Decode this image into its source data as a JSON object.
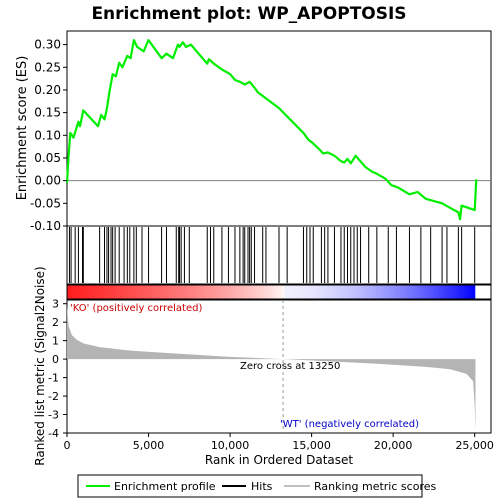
{
  "chart_data": {
    "type": "line",
    "title": "Enrichment plot: WP_APOPTOSIS",
    "panels": {
      "enrichment": {
        "ylabel": "Enrichment score (ES)",
        "ylim": [
          -0.1,
          0.33
        ],
        "yticks": [
          "0.30",
          "0.25",
          "0.20",
          "0.15",
          "0.10",
          "0.05",
          "0.00",
          "-0.05",
          "-0.10"
        ],
        "ytick_values": [
          0.3,
          0.25,
          0.2,
          0.15,
          0.1,
          0.05,
          0.0,
          -0.05,
          -0.1
        ],
        "series": [
          {
            "name": "Enrichment profile",
            "color": "#00ee00",
            "x": [
              0,
              100,
              200,
              400,
              700,
              800,
              1000,
              1900,
              2100,
              2300,
              2450,
              2600,
              2800,
              3000,
              3200,
              3400,
              3700,
              3900,
              4100,
              4300,
              4700,
              5000,
              5800,
              6100,
              6500,
              6800,
              6900,
              7100,
              7300,
              7600,
              8600,
              8700,
              9000,
              9500,
              10000,
              10300,
              10600,
              10900,
              11200,
              11500,
              11700,
              13000,
              14500,
              14800,
              15000,
              15500,
              15700,
              16000,
              16400,
              16800,
              17000,
              17200,
              17400,
              17700,
              18300,
              18700,
              19000,
              19500,
              19900,
              20300,
              21000,
              21500,
              22000,
              22500,
              23000,
              23500,
              24000,
              24100,
              24200,
              25000,
              25100
            ],
            "y": [
              -0.005,
              0.055,
              0.105,
              0.095,
              0.13,
              0.12,
              0.155,
              0.12,
              0.145,
              0.135,
              0.16,
              0.195,
              0.235,
              0.23,
              0.26,
              0.25,
              0.275,
              0.27,
              0.31,
              0.295,
              0.285,
              0.31,
              0.27,
              0.28,
              0.27,
              0.3,
              0.295,
              0.305,
              0.295,
              0.3,
              0.258,
              0.268,
              0.258,
              0.245,
              0.235,
              0.222,
              0.218,
              0.212,
              0.218,
              0.205,
              0.195,
              0.16,
              0.105,
              0.09,
              0.085,
              0.068,
              0.06,
              0.062,
              0.055,
              0.043,
              0.04,
              0.048,
              0.038,
              0.055,
              0.03,
              0.02,
              0.015,
              0.005,
              -0.01,
              -0.015,
              -0.03,
              -0.025,
              -0.04,
              -0.045,
              -0.05,
              -0.06,
              -0.07,
              -0.085,
              -0.055,
              -0.065,
              0.003
            ]
          }
        ]
      },
      "hits": {
        "positions": [
          150,
          250,
          500,
          700,
          950,
          1000,
          2000,
          2300,
          2450,
          2550,
          2700,
          2800,
          2950,
          3200,
          3500,
          3700,
          3850,
          4100,
          4250,
          4600,
          5000,
          5800,
          6100,
          6700,
          6850,
          6900,
          7000,
          7200,
          7500,
          8600,
          8800,
          9000,
          9500,
          9900,
          10300,
          10600,
          10800,
          10900,
          11100,
          11200,
          11300,
          11500,
          12000,
          12200,
          13000,
          13500,
          14500,
          14700,
          14900,
          15100,
          15600,
          15800,
          16000,
          16400,
          16800,
          17000,
          17200,
          17400,
          17600,
          17800,
          18000,
          18500,
          19000,
          19700,
          20200,
          21000,
          21700,
          22300,
          23000,
          23300,
          24000,
          24200,
          25000
        ]
      },
      "ranking_bar": {
        "left_label": "'KO' (positively correlated)",
        "right_label": "'WT' (negatively correlated)",
        "zero_cross_label": "Zero cross at 13250",
        "zero_cross": 13250
      },
      "metric": {
        "ylabel": "Ranked list metric (Signal2Noise)",
        "ylim": [
          -4,
          3.2
        ],
        "yticks": [
          "3",
          "2",
          "1",
          "0",
          "-1",
          "-2",
          "-3",
          "-4"
        ],
        "ytick_values": [
          3,
          2,
          1,
          0,
          -1,
          -2,
          -3,
          -4
        ],
        "xlabel": "Rank in Ordered Dataset",
        "xlim": [
          0,
          26000
        ],
        "xticks": [
          "0",
          "5,000",
          "10,000",
          "15,000",
          "20,000",
          "25,000"
        ],
        "xtick_values": [
          0,
          5000,
          10000,
          15000,
          20000,
          25000
        ],
        "profile_x": [
          0,
          100,
          300,
          600,
          1000,
          2000,
          4000,
          7000,
          10000,
          13250,
          16000,
          19000,
          22000,
          23500,
          24500,
          24900,
          25000,
          25050
        ],
        "profile_y": [
          2.9,
          1.8,
          1.3,
          1.05,
          0.85,
          0.65,
          0.45,
          0.28,
          0.12,
          0.0,
          -0.12,
          -0.25,
          -0.42,
          -0.55,
          -0.8,
          -1.2,
          -2.5,
          -3.9
        ]
      }
    },
    "legend": {
      "position": "bottom",
      "items": [
        {
          "label": "Enrichment profile",
          "color": "#00ee00"
        },
        {
          "label": "Hits",
          "color": "#000000"
        },
        {
          "label": "Ranking metric scores",
          "color": "#c0c0c0"
        }
      ]
    }
  }
}
